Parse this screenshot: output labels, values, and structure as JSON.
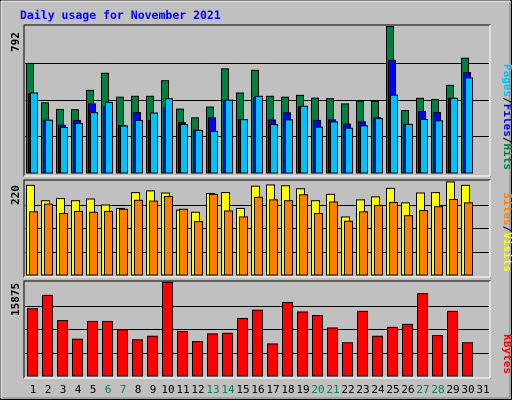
{
  "chart_data": [
    {
      "type": "bar",
      "title": "Daily usage for November 2021",
      "panel": "hits-files-pages",
      "ymax_label": "792",
      "ylim": [
        0,
        792
      ],
      "categories": [
        "1",
        "2",
        "3",
        "4",
        "5",
        "6",
        "7",
        "8",
        "9",
        "10",
        "11",
        "12",
        "13",
        "14",
        "15",
        "16",
        "17",
        "18",
        "19",
        "20",
        "21",
        "22",
        "23",
        "24",
        "25",
        "26",
        "27",
        "28",
        "29",
        "30",
        "31"
      ],
      "weekend_days": [
        "6",
        "7",
        "13",
        "14",
        "20",
        "21",
        "27",
        "28"
      ],
      "series": [
        {
          "name": "Hits",
          "color": "#008040",
          "values": [
            593,
            381,
            345,
            344,
            448,
            540,
            411,
            416,
            416,
            500,
            347,
            300,
            358,
            564,
            434,
            556,
            416,
            411,
            421,
            406,
            403,
            375,
            390,
            388,
            792,
            339,
            405,
            399,
            475,
            621,
            0
          ]
        },
        {
          "name": "Files",
          "color": "#0000ff",
          "values": [
            429,
            287,
            260,
            286,
            375,
            360,
            259,
            328,
            285,
            355,
            274,
            233,
            300,
            394,
            291,
            409,
            288,
            327,
            359,
            286,
            289,
            266,
            278,
            300,
            610,
            265,
            334,
            329,
            405,
            544,
            0
          ]
        },
        {
          "name": "Pages",
          "color": "#00c0ff",
          "values": [
            434,
            287,
            248,
            270,
            328,
            383,
            256,
            286,
            326,
            403,
            264,
            232,
            227,
            395,
            290,
            416,
            264,
            289,
            362,
            250,
            278,
            244,
            257,
            296,
            422,
            264,
            291,
            284,
            405,
            515,
            0
          ]
        }
      ],
      "legend": [
        "Pages",
        "Files",
        "Hits"
      ]
    },
    {
      "type": "bar",
      "panel": "sites-visits",
      "ymax_label": "220",
      "ylim": [
        0,
        220
      ],
      "categories": [
        "1",
        "2",
        "3",
        "4",
        "5",
        "6",
        "7",
        "8",
        "9",
        "10",
        "11",
        "12",
        "13",
        "14",
        "15",
        "16",
        "17",
        "18",
        "19",
        "20",
        "21",
        "22",
        "23",
        "24",
        "25",
        "26",
        "27",
        "28",
        "29",
        "30",
        "31"
      ],
      "series": [
        {
          "name": "Visits",
          "color": "#ffff00",
          "values": [
            211,
            175,
            180,
            175,
            179,
            165,
            157,
            194,
            198,
            193,
            153,
            148,
            192,
            194,
            157,
            209,
            212,
            210,
            203,
            175,
            190,
            137,
            177,
            184,
            204,
            170,
            193,
            194,
            219,
            211,
            0
          ]
        },
        {
          "name": "Sites",
          "color": "#ff8000",
          "values": [
            149,
            167,
            145,
            150,
            148,
            150,
            155,
            176,
            174,
            185,
            155,
            126,
            190,
            151,
            137,
            183,
            177,
            175,
            189,
            145,
            172,
            127,
            149,
            164,
            171,
            140,
            152,
            161,
            178,
            170,
            0
          ]
        }
      ],
      "legend": [
        "Sites",
        "Visits"
      ]
    },
    {
      "type": "bar",
      "panel": "kbytes",
      "ymax_label": "15875",
      "ylim": [
        0,
        15875
      ],
      "categories": [
        "1",
        "2",
        "3",
        "4",
        "5",
        "6",
        "7",
        "8",
        "9",
        "10",
        "11",
        "12",
        "13",
        "14",
        "15",
        "16",
        "17",
        "18",
        "19",
        "20",
        "21",
        "22",
        "23",
        "24",
        "25",
        "26",
        "27",
        "28",
        "29",
        "30",
        "31"
      ],
      "series": [
        {
          "name": "KBytes",
          "color": "#ff0000",
          "values": [
            11450,
            13700,
            9450,
            6300,
            9300,
            9300,
            7900,
            6200,
            6800,
            15900,
            7600,
            5900,
            7200,
            7300,
            9800,
            11200,
            5500,
            12500,
            10900,
            10300,
            8200,
            5700,
            11000,
            6800,
            8300,
            8800,
            14000,
            6900,
            11000,
            5700,
            0
          ]
        }
      ],
      "legend": [
        "KBytes"
      ]
    }
  ],
  "colors": {
    "background": "#c0c0c0",
    "plot_bg": "#c0c0c0",
    "title": "#0000ff",
    "weekday_label": "#000000",
    "weekend_label": "#00805c"
  }
}
